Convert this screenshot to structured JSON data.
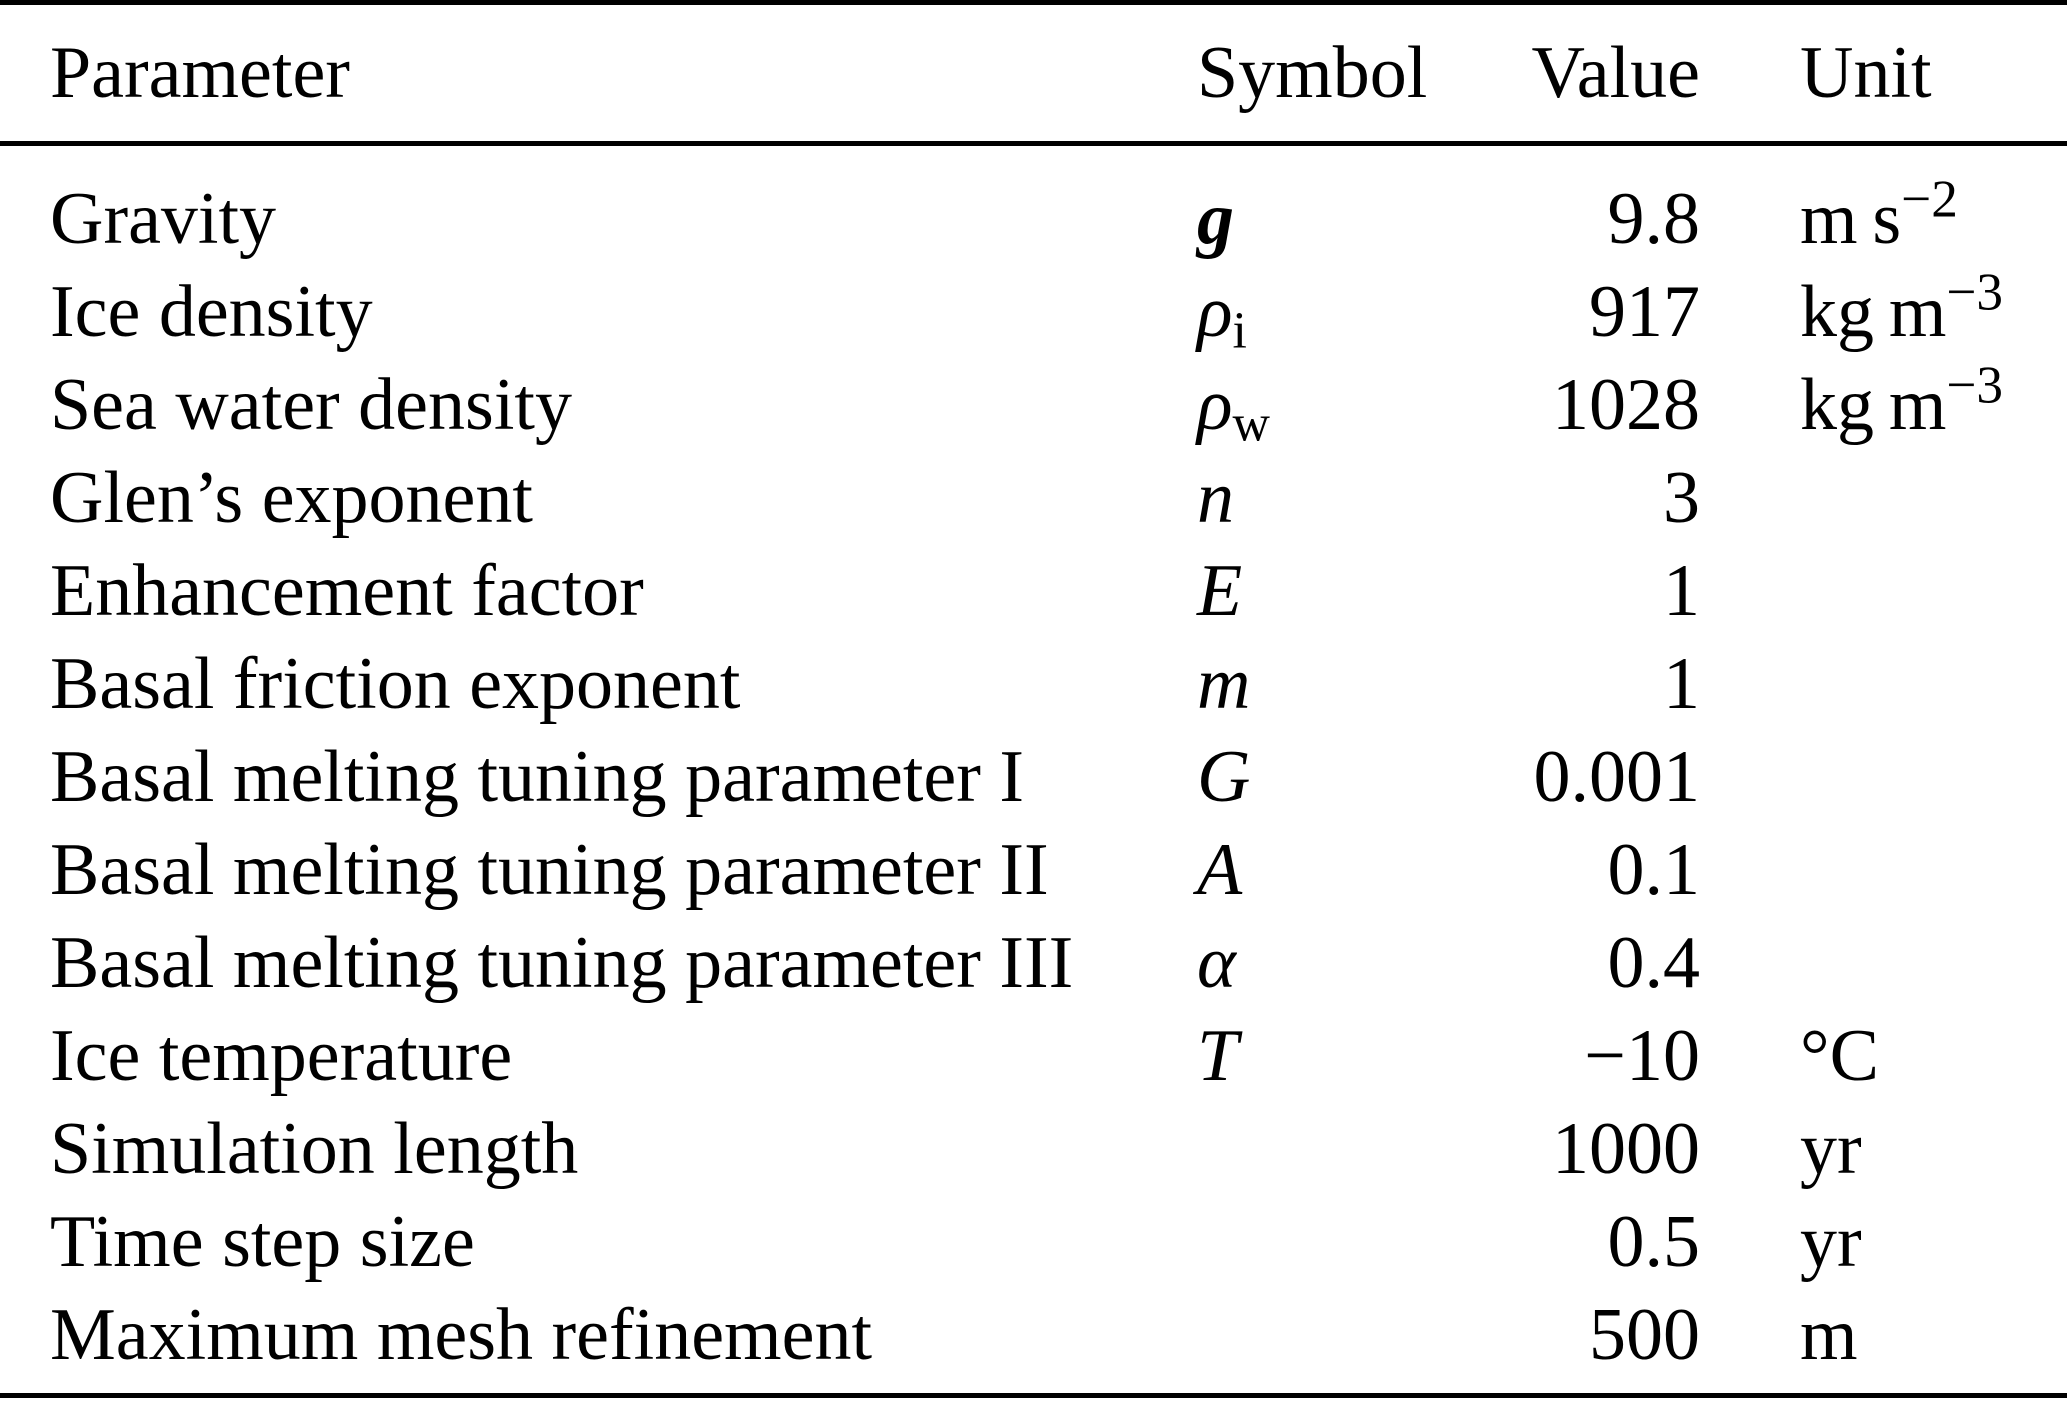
{
  "table": {
    "headers": {
      "parameter": "Parameter",
      "symbol": "Symbol",
      "value": "Value",
      "unit": "Unit"
    },
    "rows": [
      {
        "param": "Gravity",
        "sym": {
          "text": "g",
          "bold": true,
          "italic": true
        },
        "value": "9.8",
        "unit": {
          "text": "m s",
          "sup": "−2"
        }
      },
      {
        "param": "Ice density",
        "sym": {
          "text": "ρ",
          "italic": true,
          "sub": "i"
        },
        "value": "917",
        "unit": {
          "text": "kg m",
          "sup": "−3"
        }
      },
      {
        "param": "Sea water density",
        "sym": {
          "text": "ρ",
          "italic": true,
          "sub": "w"
        },
        "value": "1028",
        "unit": {
          "text": "kg m",
          "sup": "−3"
        }
      },
      {
        "param": "Glen’s exponent",
        "sym": {
          "text": "n",
          "italic": true
        },
        "value": "3",
        "unit": null
      },
      {
        "param": "Enhancement factor",
        "sym": {
          "text": "E",
          "italic": true
        },
        "value": "1",
        "unit": null
      },
      {
        "param": "Basal friction exponent",
        "sym": {
          "text": "m",
          "italic": true
        },
        "value": "1",
        "unit": null
      },
      {
        "param": "Basal melting tuning parameter I",
        "sym": {
          "text": "G",
          "italic": true
        },
        "value": "0.001",
        "unit": null
      },
      {
        "param": "Basal melting tuning parameter II",
        "sym": {
          "text": "A",
          "italic": true
        },
        "value": "0.1",
        "unit": null
      },
      {
        "param": "Basal melting tuning parameter III",
        "sym": {
          "text": "α",
          "italic": true
        },
        "value": "0.4",
        "unit": null
      },
      {
        "param": "Ice temperature",
        "sym": {
          "text": "T",
          "italic": true
        },
        "value": "−10",
        "unit": {
          "text": "°C"
        }
      },
      {
        "param": "Simulation length",
        "sym": null,
        "value": "1000",
        "unit": {
          "text": "yr"
        }
      },
      {
        "param": "Time step size",
        "sym": null,
        "value": "0.5",
        "unit": {
          "text": "yr"
        }
      },
      {
        "param": "Maximum mesh refinement",
        "sym": null,
        "value": "500",
        "unit": {
          "text": "m"
        }
      }
    ]
  }
}
